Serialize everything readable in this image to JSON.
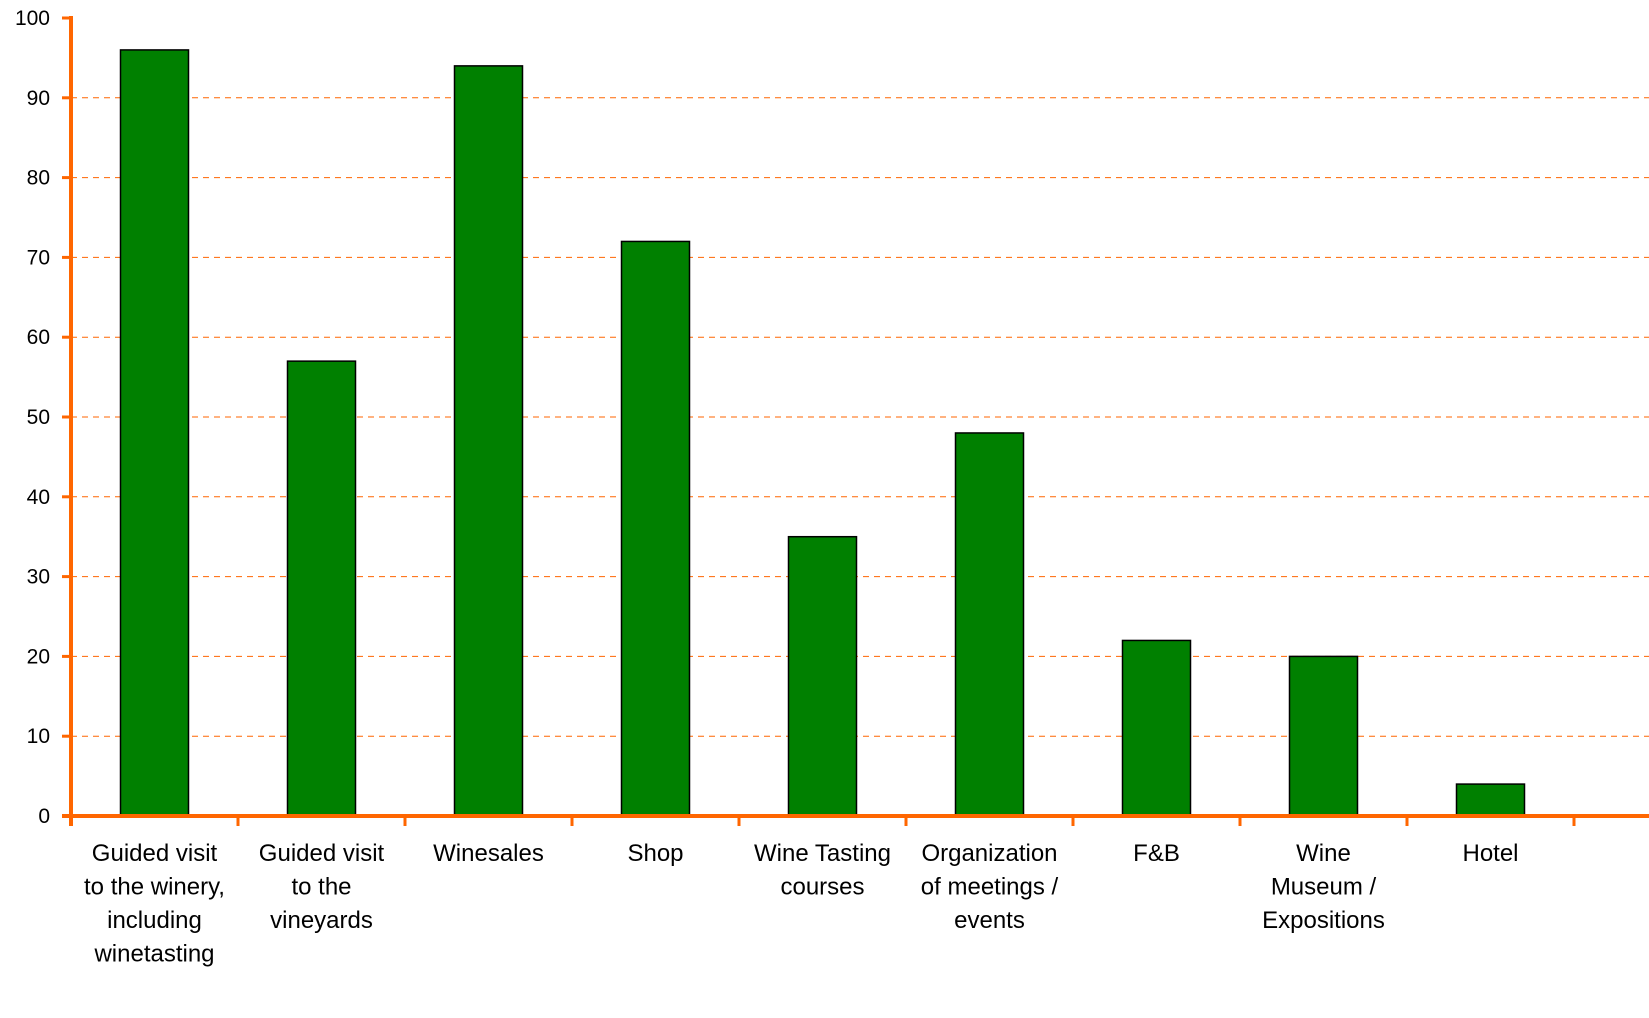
{
  "chart_data": {
    "type": "bar",
    "categories": [
      "Guided visit to the winery, including winetasting",
      "Guided visit to the vineyards",
      "Winesales",
      "Shop",
      "Wine Tasting courses",
      "Organization of meetings / events",
      "F&B",
      "Wine Museum / Expositions",
      "Hotel"
    ],
    "category_label_lines": [
      [
        "Guided visit",
        "to the winery,",
        "including",
        "winetasting"
      ],
      [
        "Guided visit",
        "to the",
        "vineyards"
      ],
      [
        "Winesales"
      ],
      [
        "Shop"
      ],
      [
        "Wine Tasting",
        "courses"
      ],
      [
        "Organization",
        "of meetings /",
        "events"
      ],
      [
        "F&B"
      ],
      [
        "Wine",
        "Museum /",
        "Expositions"
      ],
      [
        "Hotel"
      ]
    ],
    "values": [
      96,
      57,
      94,
      72,
      35,
      48,
      22,
      20,
      4
    ],
    "ylim": [
      0,
      100
    ],
    "yticks": [
      "0",
      "10",
      "20",
      "30",
      "40",
      "50",
      "60",
      "70",
      "80",
      "90",
      "100"
    ],
    "title": "",
    "xlabel": "",
    "ylabel": "",
    "grid": true,
    "legend": "none",
    "colors": {
      "bar_fill": "#008000",
      "bar_stroke": "#000000",
      "axis": "#FF6600",
      "grid": "#FF6600"
    }
  }
}
